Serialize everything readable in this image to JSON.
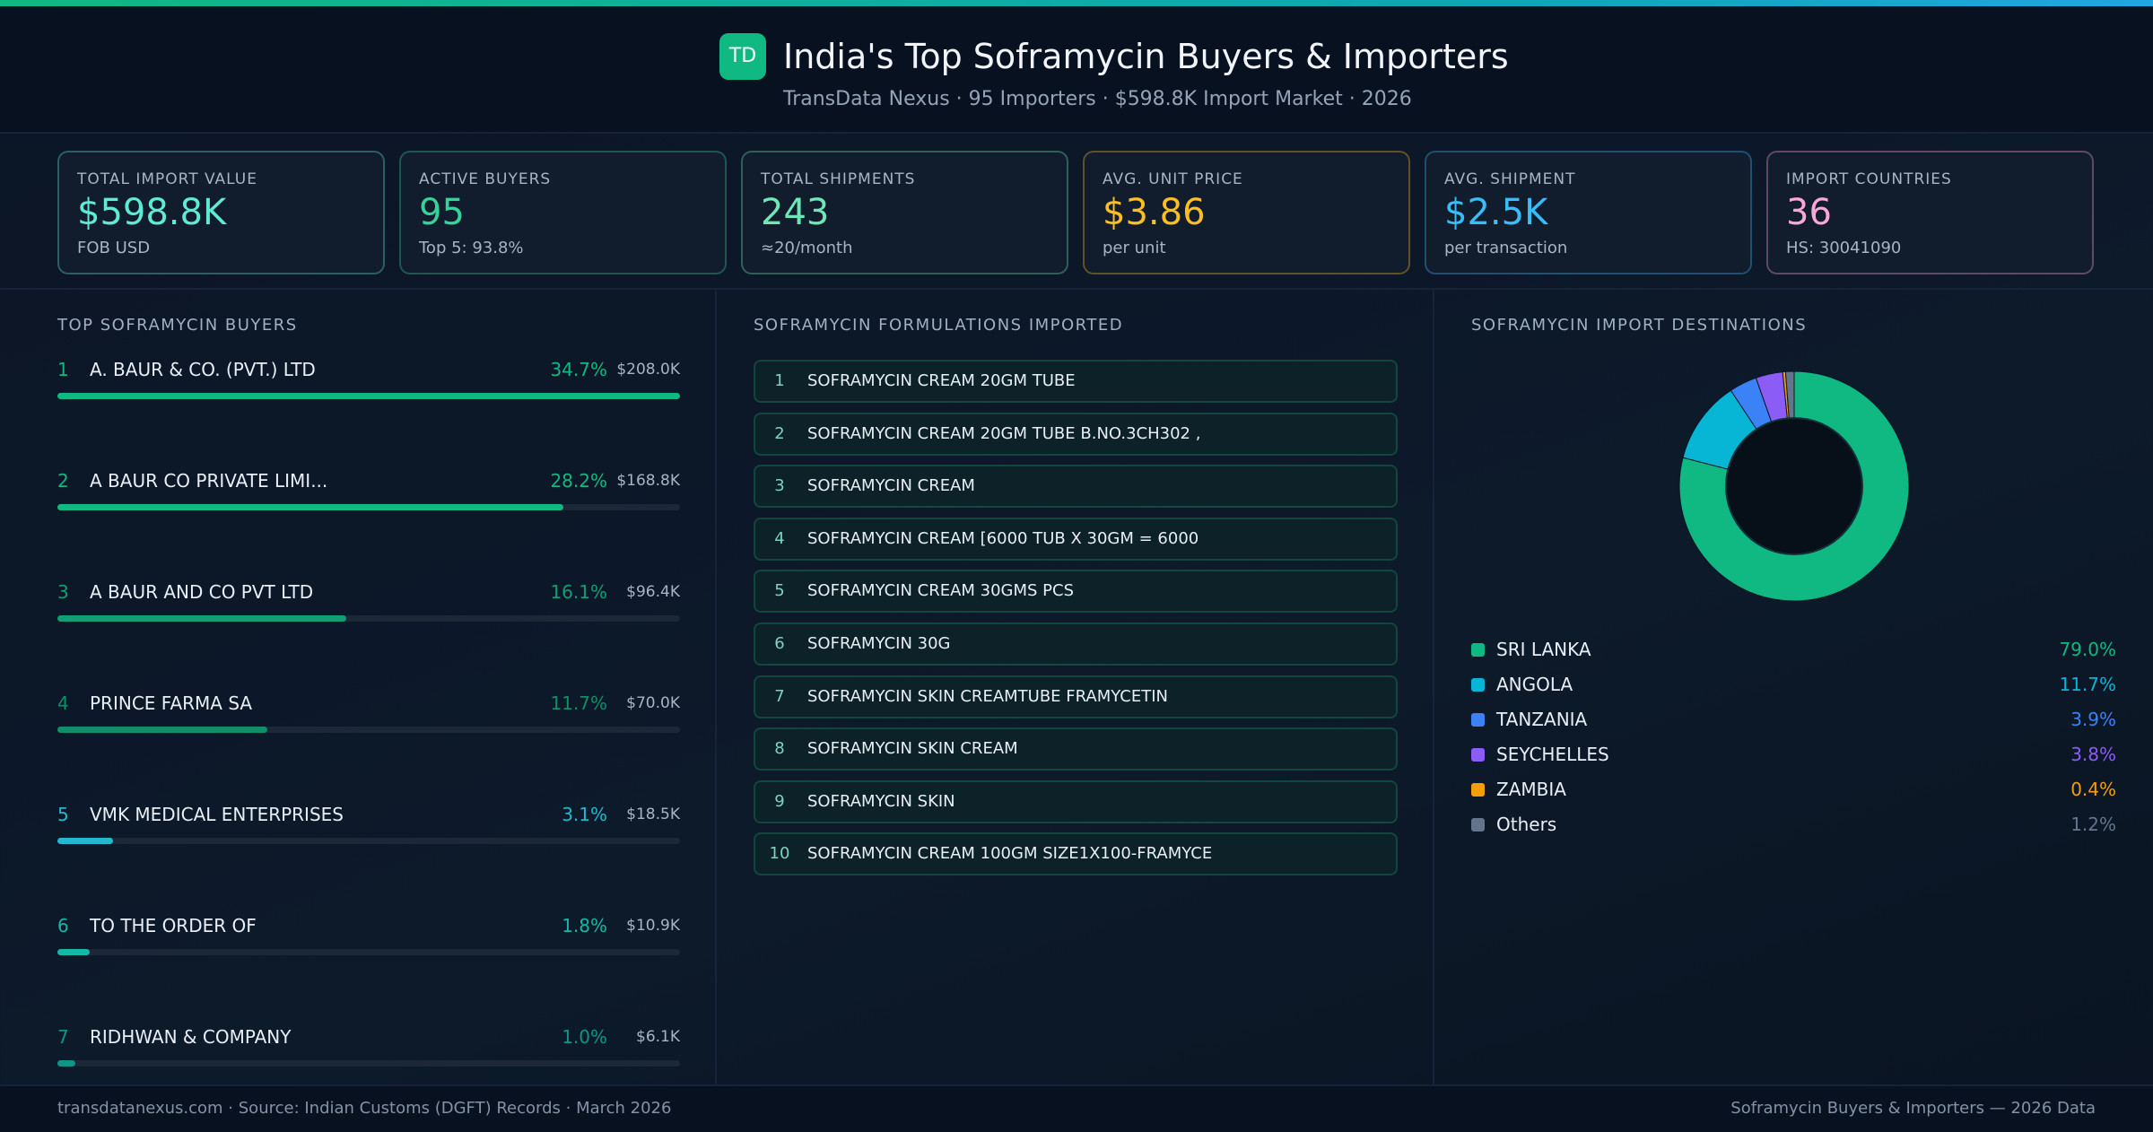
{
  "header": {
    "logo": "TD",
    "title": "India's Top Soframycin Buyers & Importers",
    "subtitle": "TransData Nexus · 95 Importers · $598.8K Import Market · 2026"
  },
  "kpis": [
    {
      "label": "TOTAL IMPORT VALUE",
      "value": "$598.8K",
      "note": "FOB USD",
      "color": "#5eead4"
    },
    {
      "label": "ACTIVE BUYERS",
      "value": "95",
      "note": "Top 5: 93.8%",
      "color": "#34d399"
    },
    {
      "label": "TOTAL SHIPMENTS",
      "value": "243",
      "note": "≈20/month",
      "color": "#6ee7b7"
    },
    {
      "label": "AVG. UNIT PRICE",
      "value": "$3.86",
      "note": "per unit",
      "color": "#fbbf24"
    },
    {
      "label": "AVG. SHIPMENT",
      "value": "$2.5K",
      "note": "per transaction",
      "color": "#38bdf8"
    },
    {
      "label": "IMPORT COUNTRIES",
      "value": "36",
      "note": "HS: 30041090",
      "color": "#f9a8d4"
    }
  ],
  "buyers": {
    "title": "TOP SOFRAMYCIN BUYERS",
    "rows": [
      {
        "rank": 1,
        "name": "A. BAUR & CO. (PVT.) LTD",
        "share": {
          "value": 34.7,
          "label": "34.7%"
        },
        "value": "$208.0K",
        "color": "#10b981"
      },
      {
        "rank": 2,
        "name": "A BAUR CO PRIVATE LIMI...",
        "share": {
          "value": 28.2,
          "label": "28.2%"
        },
        "value": "$168.8K",
        "color": "#10b981"
      },
      {
        "rank": 3,
        "name": "A BAUR AND CO PVT LTD",
        "share": {
          "value": 16.1,
          "label": "16.1%"
        },
        "value": "$96.4K",
        "color": "#0f9f73"
      },
      {
        "rank": 4,
        "name": "PRINCE FARMA SA",
        "share": {
          "value": 11.7,
          "label": "11.7%"
        },
        "value": "$70.0K",
        "color": "#0e8f68"
      },
      {
        "rank": 5,
        "name": "VMK MEDICAL ENTERPRISES",
        "share": {
          "value": 3.1,
          "label": "3.1%"
        },
        "value": "$18.5K",
        "color": "#22b8cf"
      },
      {
        "rank": 6,
        "name": "TO THE ORDER OF",
        "share": {
          "value": 1.8,
          "label": "1.8%"
        },
        "value": "$10.9K",
        "color": "#14b8a6"
      },
      {
        "rank": 7,
        "name": "RIDHWAN & COMPANY",
        "share": {
          "value": 1.0,
          "label": "1.0%"
        },
        "value": "$6.1K",
        "color": "#0f9488"
      }
    ]
  },
  "formulations": {
    "title": "SOFRAMYCIN FORMULATIONS IMPORTED",
    "items": [
      {
        "rank": 1,
        "name": "SOFRAMYCIN CREAM 20GM TUBE"
      },
      {
        "rank": 2,
        "name": "SOFRAMYCIN CREAM 20GM TUBE B.NO.3CH302 ,"
      },
      {
        "rank": 3,
        "name": "SOFRAMYCIN CREAM"
      },
      {
        "rank": 4,
        "name": "SOFRAMYCIN CREAM [6000 TUB X 30GM = 6000"
      },
      {
        "rank": 5,
        "name": "SOFRAMYCIN CREAM 30GMS PCS"
      },
      {
        "rank": 6,
        "name": "SOFRAMYCIN 30G"
      },
      {
        "rank": 7,
        "name": "SOFRAMYCIN SKIN CREAMTUBE FRAMYCETIN"
      },
      {
        "rank": 8,
        "name": "SOFRAMYCIN SKIN CREAM"
      },
      {
        "rank": 9,
        "name": "SOFRAMYCIN SKIN"
      },
      {
        "rank": 10,
        "name": "SOFRAMYCIN CREAM 100GM SIZE1X100-FRAMYCE"
      }
    ]
  },
  "destinations": {
    "title": "SOFRAMYCIN IMPORT DESTINATIONS",
    "items": [
      {
        "name": "SRI LANKA",
        "share": {
          "value": 79.0,
          "label": "79.0%"
        },
        "color": "#10b981"
      },
      {
        "name": "ANGOLA",
        "share": {
          "value": 11.7,
          "label": "11.7%"
        },
        "color": "#06b6d4"
      },
      {
        "name": "TANZANIA",
        "share": {
          "value": 3.9,
          "label": "3.9%"
        },
        "color": "#3b82f6"
      },
      {
        "name": "SEYCHELLES",
        "share": {
          "value": 3.8,
          "label": "3.8%"
        },
        "color": "#8b5cf6"
      },
      {
        "name": "ZAMBIA",
        "share": {
          "value": 0.4,
          "label": "0.4%"
        },
        "color": "#f59e0b"
      },
      {
        "name": "Others",
        "share": {
          "value": 1.2,
          "label": "1.2%"
        },
        "color": "#64748b"
      }
    ]
  },
  "footer": {
    "left": "transdatanexus.com · Source: Indian Customs (DGFT) Records · March 2026",
    "right": "Soframycin Buyers & Importers — 2026 Data"
  }
}
